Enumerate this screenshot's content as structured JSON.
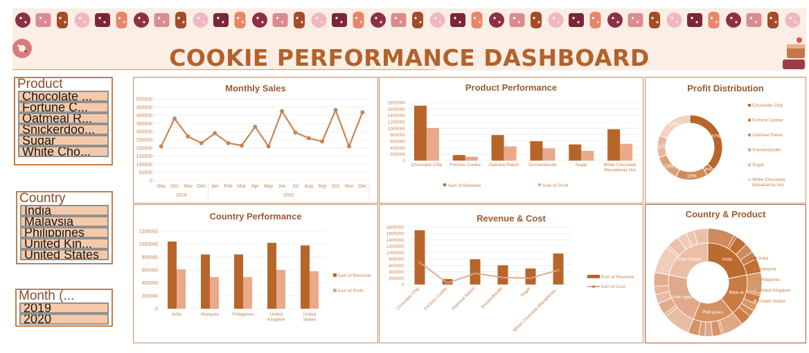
{
  "dashboard": {
    "title": "COOKIE PERFORMANCE DASHBOARD"
  },
  "colors": {
    "dark": "#b8652a",
    "light": "#e9a98a",
    "line": "#c8844f",
    "axis": "#c5834e"
  },
  "slicers": {
    "product": {
      "title": "Product",
      "items": [
        "Chocolate ...",
        "Fortune C...",
        "Oatmeal R...",
        "Snickerdoo...",
        "Sugar",
        "White Cho..."
      ]
    },
    "country": {
      "title": "Country",
      "items": [
        "India",
        "Malaysia",
        "Philippines",
        "United Kin...",
        "United States"
      ]
    },
    "month": {
      "title": "Month (...",
      "items": [
        "2019",
        "2020"
      ]
    }
  },
  "chart_data": [
    {
      "id": "monthly_sales",
      "type": "line",
      "title": "Monthly Sales",
      "categories": [
        "Sep",
        "Oct",
        "Nov",
        "Dec",
        "Jan",
        "Feb",
        "Mar",
        "Apr",
        "May",
        "Jun",
        "Jul",
        "Aug",
        "Sep",
        "Oct",
        "Nov",
        "Dec"
      ],
      "groups": [
        {
          "label": "2019",
          "count": 4
        },
        {
          "label": "2020",
          "count": 12
        }
      ],
      "values": [
        210000,
        380000,
        270000,
        230000,
        290000,
        230000,
        215000,
        330000,
        210000,
        425000,
        295000,
        260000,
        240000,
        432000,
        210000,
        418000
      ],
      "ylim": [
        0,
        500000
      ],
      "yticks": [
        0,
        50000,
        100000,
        150000,
        200000,
        250000,
        300000,
        350000,
        400000,
        450000,
        500000
      ]
    },
    {
      "id": "product_performance",
      "type": "bar",
      "title": "Product Performance",
      "categories": [
        "Chocolate Chip",
        "Fortune Cookie",
        "Oatmeal Raisin",
        "Snickerdoodle",
        "Sugar",
        "White Chocolate Macadamia Nut"
      ],
      "series": [
        {
          "name": "Sum of Revenue",
          "values": [
            1700000,
            170000,
            790000,
            600000,
            500000,
            970000
          ]
        },
        {
          "name": "Sum of Profit",
          "values": [
            1010000,
            120000,
            440000,
            380000,
            300000,
            520000
          ]
        }
      ],
      "ylim": [
        0,
        1800000
      ],
      "yticks": [
        0,
        200000,
        400000,
        600000,
        800000,
        1000000,
        1200000,
        1400000,
        1600000,
        1800000
      ],
      "legend": "bottom"
    },
    {
      "id": "profit_distribution",
      "type": "pie",
      "title": "Profit Distribution",
      "labels": [
        "Chocolate Chip",
        "Fortune Cookie",
        "Oatmeal Raisin",
        "Snickerdoodle",
        "Sugar",
        "White Chocolate Macadamia Nut"
      ],
      "values": [
        37,
        4,
        16,
        13,
        11,
        19
      ],
      "value_labels": [
        "37%",
        "4%",
        "16%",
        "13%",
        "11%",
        "19%"
      ],
      "legend": "right"
    },
    {
      "id": "country_performance",
      "type": "bar",
      "title": "Country Performance",
      "categories": [
        "India",
        "Malaysia",
        "Philippines",
        "United Kingdom",
        "United States"
      ],
      "series": [
        {
          "name": "Sum of Revenue",
          "values": [
            1040000,
            840000,
            840000,
            1020000,
            980000
          ]
        },
        {
          "name": "Sum of Profit",
          "values": [
            610000,
            490000,
            490000,
            600000,
            580000
          ]
        }
      ],
      "ylim": [
        0,
        1200000
      ],
      "yticks": [
        0,
        200000,
        400000,
        600000,
        800000,
        1000000,
        1200000
      ],
      "legend": "right"
    },
    {
      "id": "revenue_cost",
      "type": "bar",
      "title": "Revenue & Cost",
      "categories": [
        "Chocolate Chip",
        "Fortune Cookie",
        "Oatmeal Raisin",
        "Snickerdoodle",
        "Sugar",
        "White Chocolate Macadamia..."
      ],
      "series": [
        {
          "name": "Sum of Revenue",
          "kind": "bar",
          "values": [
            1700000,
            170000,
            790000,
            600000,
            500000,
            970000
          ]
        },
        {
          "name": "Sum of Cost",
          "kind": "line",
          "values": [
            690000,
            40000,
            350000,
            220000,
            200000,
            450000
          ]
        }
      ],
      "ylim": [
        0,
        1800000
      ],
      "yticks": [
        0,
        200000,
        400000,
        600000,
        800000,
        1000000,
        1200000,
        1400000,
        1600000,
        1800000
      ],
      "legend": "right"
    },
    {
      "id": "country_product",
      "type": "pie",
      "subtype": "sunburst",
      "title": "Country & Product",
      "labels": [
        "India",
        "Malaysia",
        "Philippines",
        "United Kingdom",
        "United States"
      ],
      "values": [
        22,
        17,
        17,
        22,
        22
      ],
      "inner_labels": [
        "India",
        "Mala ia",
        "Phili pines",
        "Unite ngdo",
        "Unite States"
      ],
      "products": [
        "Chocolate Chip",
        "Fortune Cookie",
        "Oatmeal Raisin",
        "Snickerdoodle",
        "Sugar",
        "White Chocolate Macadamia Nut"
      ],
      "product_shares": [
        37,
        4,
        16,
        13,
        11,
        19
      ],
      "legend": "right"
    }
  ]
}
